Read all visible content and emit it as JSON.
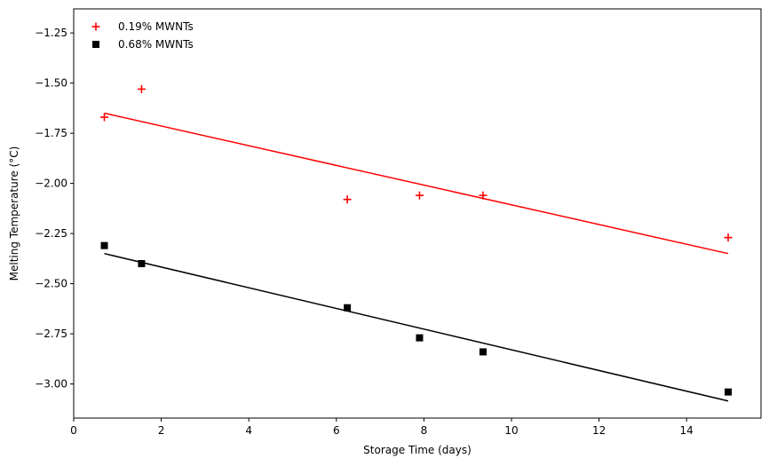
{
  "chart_data": {
    "type": "scatter",
    "title": "",
    "xlabel": "Storage Time (days)",
    "ylabel": "Melting Temperature (°C)",
    "xlim": [
      0,
      15.7
    ],
    "ylim": [
      -3.17,
      -1.13
    ],
    "xticks": [
      0,
      2,
      4,
      6,
      8,
      10,
      12,
      14
    ],
    "yticks": [
      -3.0,
      -2.75,
      -2.5,
      -2.25,
      -2.0,
      -1.75,
      -1.5,
      -1.25
    ],
    "grid": false,
    "legend_position": "top-left",
    "series": [
      {
        "name": "0.19% MWNTs",
        "marker": "plus",
        "color": "#ff0000",
        "x": [
          0.7,
          1.55,
          6.25,
          7.9,
          9.35,
          14.95
        ],
        "y": [
          -1.67,
          -1.53,
          -2.08,
          -2.06,
          -2.06,
          -2.27
        ],
        "trend": {
          "x": [
            0.7,
            14.95
          ],
          "y": [
            -1.65,
            -2.35
          ]
        }
      },
      {
        "name": "0.68% MWNTs",
        "marker": "square",
        "color": "#000000",
        "x": [
          0.7,
          1.55,
          6.25,
          7.9,
          9.35,
          14.95
        ],
        "y": [
          -2.31,
          -2.4,
          -2.62,
          -2.77,
          -2.84,
          -3.04
        ],
        "trend": {
          "x": [
            0.7,
            14.95
          ],
          "y": [
            -2.35,
            -3.085
          ]
        }
      }
    ]
  }
}
